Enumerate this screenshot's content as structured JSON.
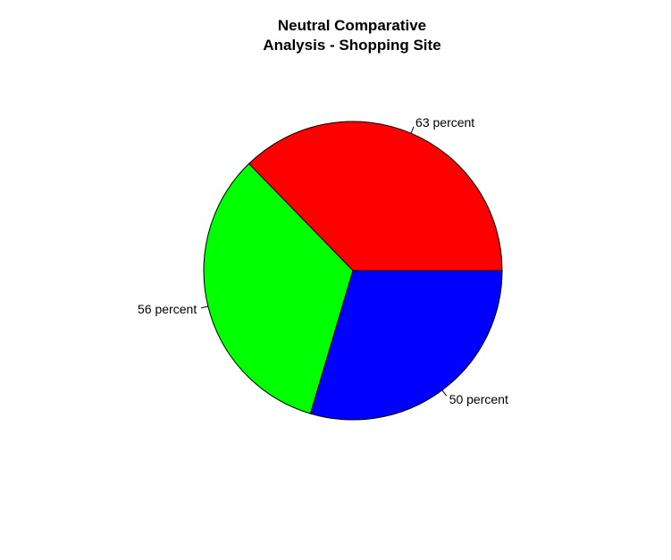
{
  "chart_data": {
    "type": "pie",
    "title": "Neutral Comparative\nAnalysis - Shopping Site",
    "slices": [
      {
        "label": "63 percent",
        "value": 63,
        "color": "#ff0000"
      },
      {
        "label": "56 percent",
        "value": 56,
        "color": "#00ff00"
      },
      {
        "label": "50 percent",
        "value": 50,
        "color": "#0000ff"
      }
    ],
    "start_angle_deg": 0,
    "direction": "counterclockwise",
    "border_color": "#000000"
  }
}
